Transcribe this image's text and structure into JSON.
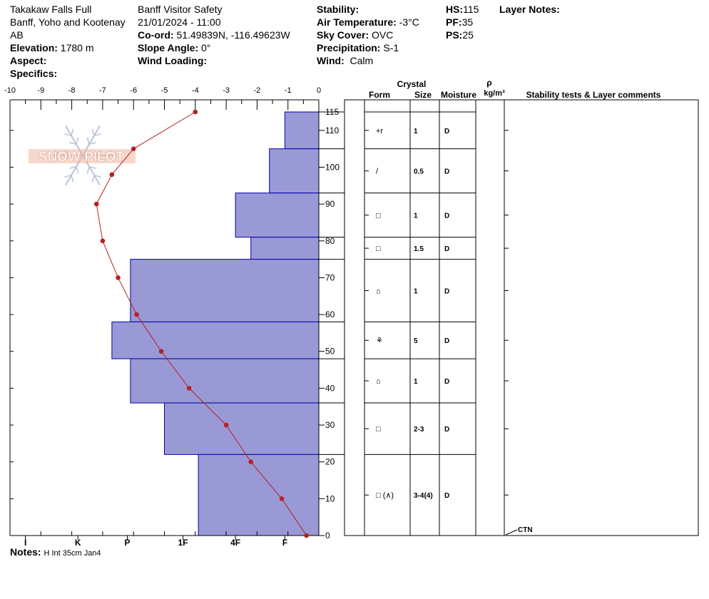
{
  "header": {
    "location": "Takakaw Falls Full",
    "region": "Banff, Yoho and Kootenay",
    "province": "AB",
    "elevation_label": "Elevation:",
    "elevation_value": "1780 m",
    "aspect_label": "Aspect:",
    "aspect_value": "",
    "specifics_label": "Specifics:",
    "specifics_value": "",
    "observer": "Banff  Visitor Safety",
    "datetime": "21/01/2024 - 11:00",
    "coord_label": "Co-ord:",
    "coord_value": "51.49839N, -116.49623W",
    "slope_label": "Slope Angle:",
    "slope_value": "0°",
    "wind_loading_label": "Wind Loading:",
    "wind_loading_value": "",
    "stability_label": "Stability:",
    "stability_value": "",
    "air_temp_label": "Air Temperature:",
    "air_temp_value": "-3°C",
    "sky_label": "Sky Cover:",
    "sky_value": "OVC",
    "precip_label": "Precipitation:",
    "precip_value": "S-1",
    "wind_label": "Wind:",
    "wind_value": "Calm",
    "hs_label": "HS:",
    "hs_value": "115",
    "pf_label": "PF:",
    "pf_value": "35",
    "ps_label": "PS:",
    "ps_value": "25",
    "layer_notes_label": "Layer Notes:"
  },
  "notes": {
    "label": "Notes:",
    "value": "H Int 35cm Jan4"
  },
  "table_headers": {
    "crystal": "Crystal",
    "form": "Form",
    "size": "Size",
    "moisture": "Moisture",
    "rho": "ρ",
    "density_unit": "kg/m³",
    "comments": "Stability tests & Layer comments"
  },
  "colors": {
    "hardness_fill": "#9999d6",
    "hardness_stroke": "#0000aa",
    "temp_line": "#b22222",
    "watermark": "#f0b8a0",
    "snowflake": "#b8c4d8"
  },
  "watermark_text": "SNOW PILOT",
  "chart_data": {
    "type": "snow_profile",
    "temperature_axis": {
      "ticks": [
        -10,
        -9,
        -8,
        -7,
        -6,
        -5,
        -4,
        -3,
        -2,
        -1,
        0
      ],
      "range": [
        -10,
        0
      ]
    },
    "height_axis": {
      "ticks": [
        0,
        10,
        20,
        30,
        40,
        50,
        60,
        70,
        80,
        90,
        100,
        110,
        115
      ],
      "range": [
        0,
        115
      ]
    },
    "hardness_axis": {
      "labels": [
        "I",
        "K",
        "P",
        "1F",
        "4F",
        "F"
      ]
    },
    "temperature_profile": [
      {
        "height": 115,
        "temp": -4.0
      },
      {
        "height": 105,
        "temp": -6.0
      },
      {
        "height": 98,
        "temp": -6.7
      },
      {
        "height": 90,
        "temp": -7.2
      },
      {
        "height": 80,
        "temp": -7.0
      },
      {
        "height": 70,
        "temp": -6.5
      },
      {
        "height": 60,
        "temp": -5.9
      },
      {
        "height": 50,
        "temp": -5.1
      },
      {
        "height": 40,
        "temp": -4.2
      },
      {
        "height": 30,
        "temp": -3.0
      },
      {
        "height": 20,
        "temp": -2.2
      },
      {
        "height": 10,
        "temp": -1.2
      },
      {
        "height": 0,
        "temp": -0.4
      }
    ],
    "layers": [
      {
        "top": 115,
        "bottom": 105,
        "hardness_temp": -1.1,
        "form": "+r",
        "size": "1",
        "moisture": "D"
      },
      {
        "top": 105,
        "bottom": 93,
        "hardness_temp": -1.6,
        "form": "/",
        "size": "0.5",
        "moisture": "D"
      },
      {
        "top": 93,
        "bottom": 81,
        "hardness_temp": -2.7,
        "form": "□",
        "size": "1",
        "moisture": "D"
      },
      {
        "top": 81,
        "bottom": 75,
        "hardness_temp": -2.2,
        "form": "□",
        "size": "1.5",
        "moisture": "D"
      },
      {
        "top": 75,
        "bottom": 58,
        "hardness_temp": -6.1,
        "form": "⌂",
        "size": "1",
        "moisture": "D"
      },
      {
        "top": 58,
        "bottom": 48,
        "hardness_temp": -6.7,
        "form": "⚘",
        "size": "5",
        "moisture": "D"
      },
      {
        "top": 48,
        "bottom": 36,
        "hardness_temp": -6.1,
        "form": "⌂",
        "size": "1",
        "moisture": "D"
      },
      {
        "top": 36,
        "bottom": 22,
        "hardness_temp": -5.0,
        "form": "□",
        "size": "2-3",
        "moisture": "D"
      },
      {
        "top": 22,
        "bottom": 0,
        "hardness_temp": -3.9,
        "form": "□ (∧)",
        "size": "3-4(4)",
        "moisture": "D"
      }
    ],
    "stability_tests": [
      {
        "height": 0,
        "result": "CTN"
      }
    ]
  }
}
